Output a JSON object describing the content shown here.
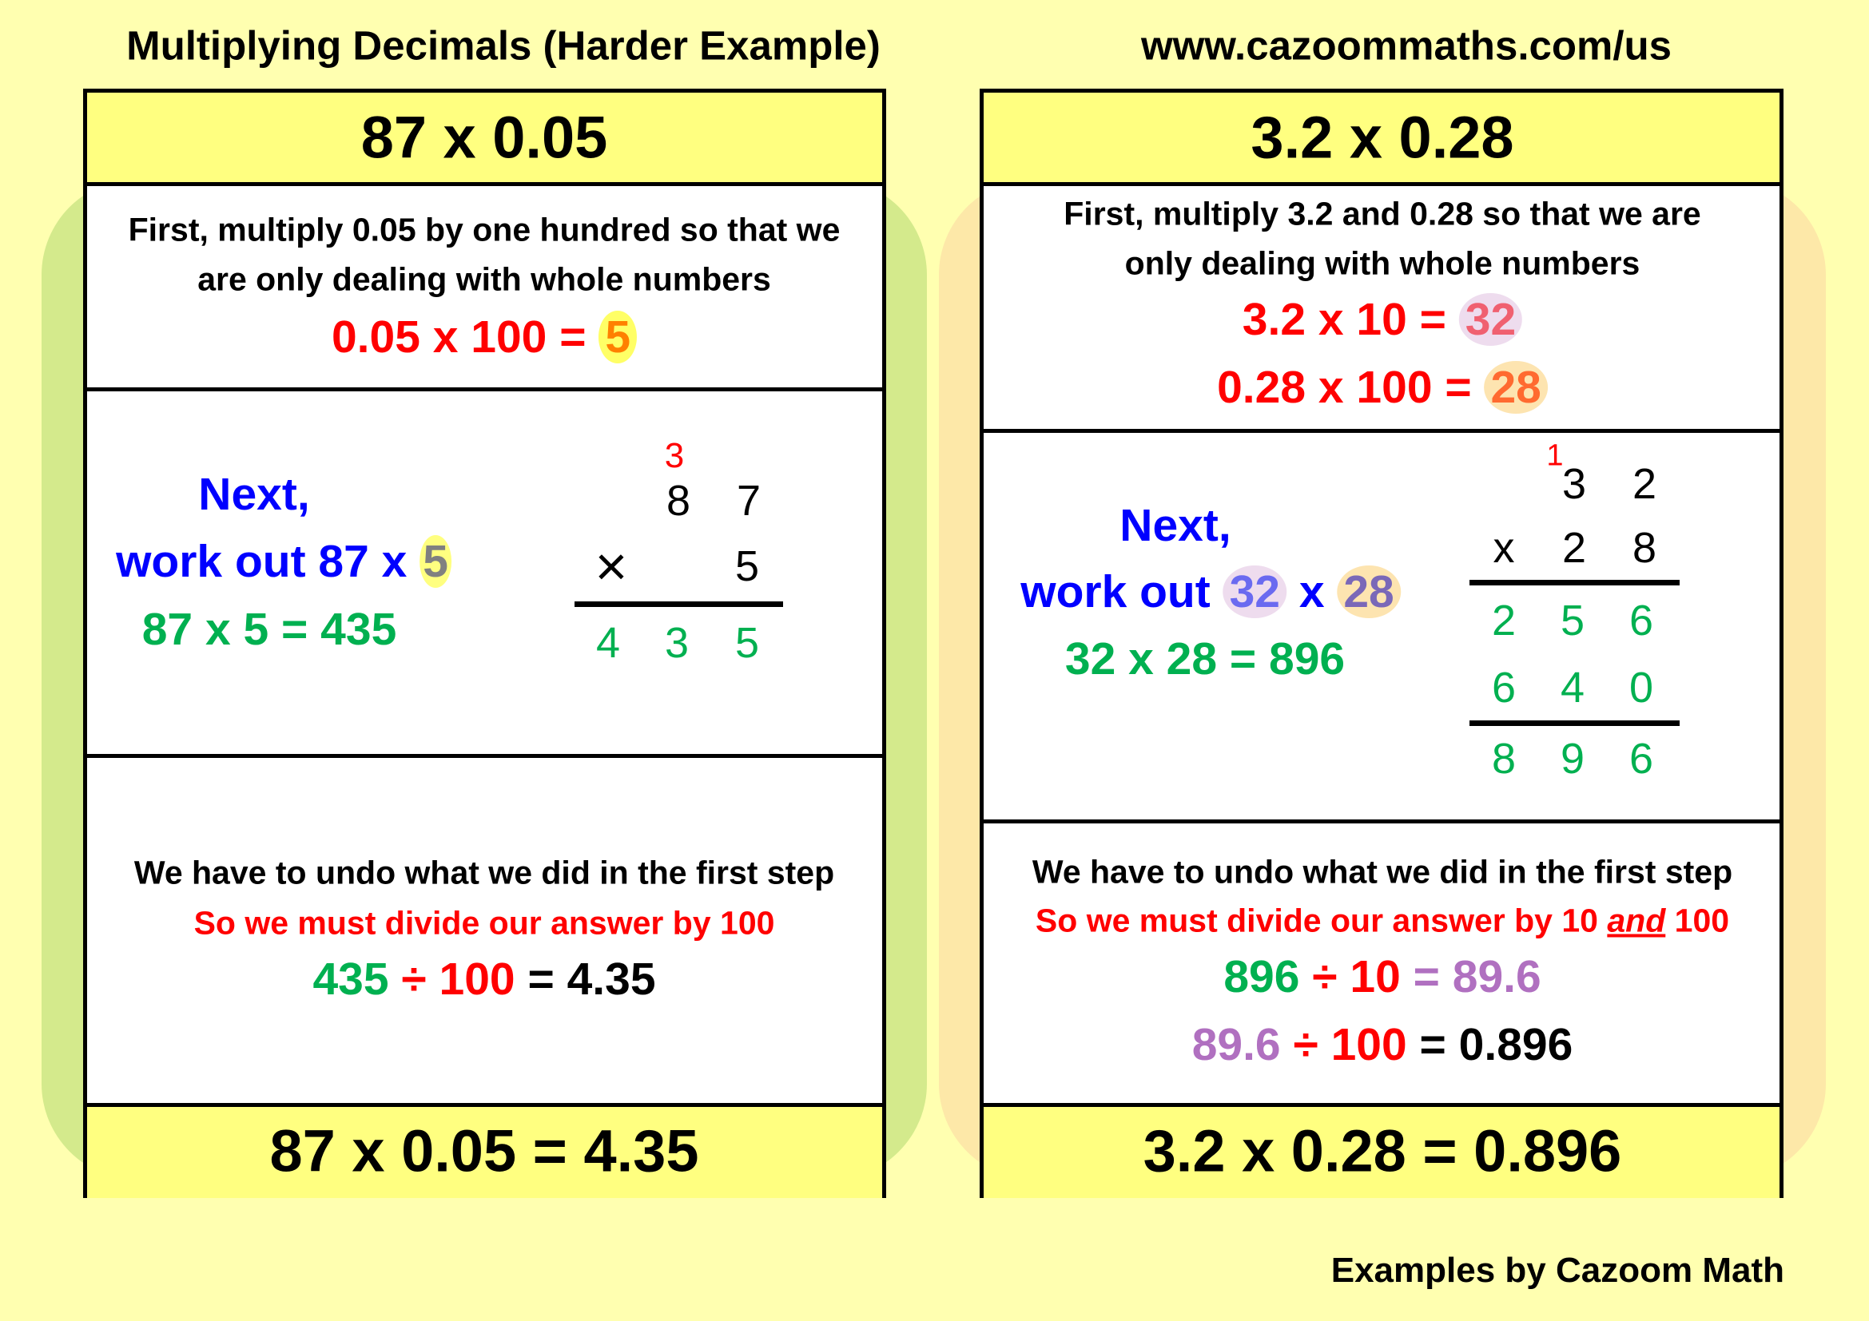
{
  "title_left": "Multiplying Decimals (Harder Example)",
  "title_right": "www.cazoommaths.com/us",
  "credit": "Examples by Cazoom Math",
  "colors": {
    "background": "#ffffb0",
    "header": "#ffff80",
    "left_blob": "#d4ea8c",
    "right_blob": "#fde8a8",
    "red": "#ff0000",
    "green": "#00b050",
    "blue": "#0000ff",
    "purple": "#b070c0"
  },
  "left": {
    "header": "87 x 0.05",
    "step1": {
      "line1": "First, multiply 0.05 by one hundred so that we",
      "line2": "are only dealing with whole numbers",
      "eq": "0.05 x 100 = ",
      "eq_result": "5"
    },
    "step2": {
      "next": "Next,",
      "work": "work out 87 x ",
      "work_b": "5",
      "eq": "87 x 5 = 435",
      "carry": "3",
      "top": [
        "8",
        "7"
      ],
      "times": "×",
      "bottom": "5",
      "result": [
        "4",
        "3",
        "5"
      ]
    },
    "step3": {
      "line1": "We have to undo what we did in the first step",
      "line2": "So we must divide our answer by 100",
      "eq_a": "435",
      "eq_b": " ÷ 100",
      "eq_c": " = 4.35"
    },
    "footer": "87 x 0.05 = 4.35"
  },
  "right": {
    "header": "3.2 x 0.28",
    "step1": {
      "line1": "First, multiply 3.2 and 0.28 so that we are",
      "line2": "only dealing with whole numbers",
      "eq1": "3.2 x 10 = ",
      "eq1_result": "32",
      "eq2": "0.28 x 100 = ",
      "eq2_result": "28"
    },
    "step2": {
      "next": "Next,",
      "work": "work out ",
      "work_a": "32",
      "work_x": " x ",
      "work_b": "28",
      "eq": "32 x 28 = 896",
      "carry": "1",
      "top": [
        "3",
        "2"
      ],
      "times": "x",
      "bottom": [
        "2",
        "8"
      ],
      "row1": [
        "2",
        "5",
        "6"
      ],
      "row2": [
        "6",
        "4",
        "0"
      ],
      "result": [
        "8",
        "9",
        "6"
      ]
    },
    "step3": {
      "line1": "We have to undo what we did in the first step",
      "line2a": "So we must divide our answer by 10 ",
      "line2b": "and",
      "line2c": " 100",
      "eq1_a": "896",
      "eq1_b": " ÷ 10",
      "eq1_c": " = 89.6",
      "eq2_a": "89.6",
      "eq2_b": " ÷ 100",
      "eq2_c": " = 0.896"
    },
    "footer": "3.2 x 0.28 = 0.896"
  }
}
